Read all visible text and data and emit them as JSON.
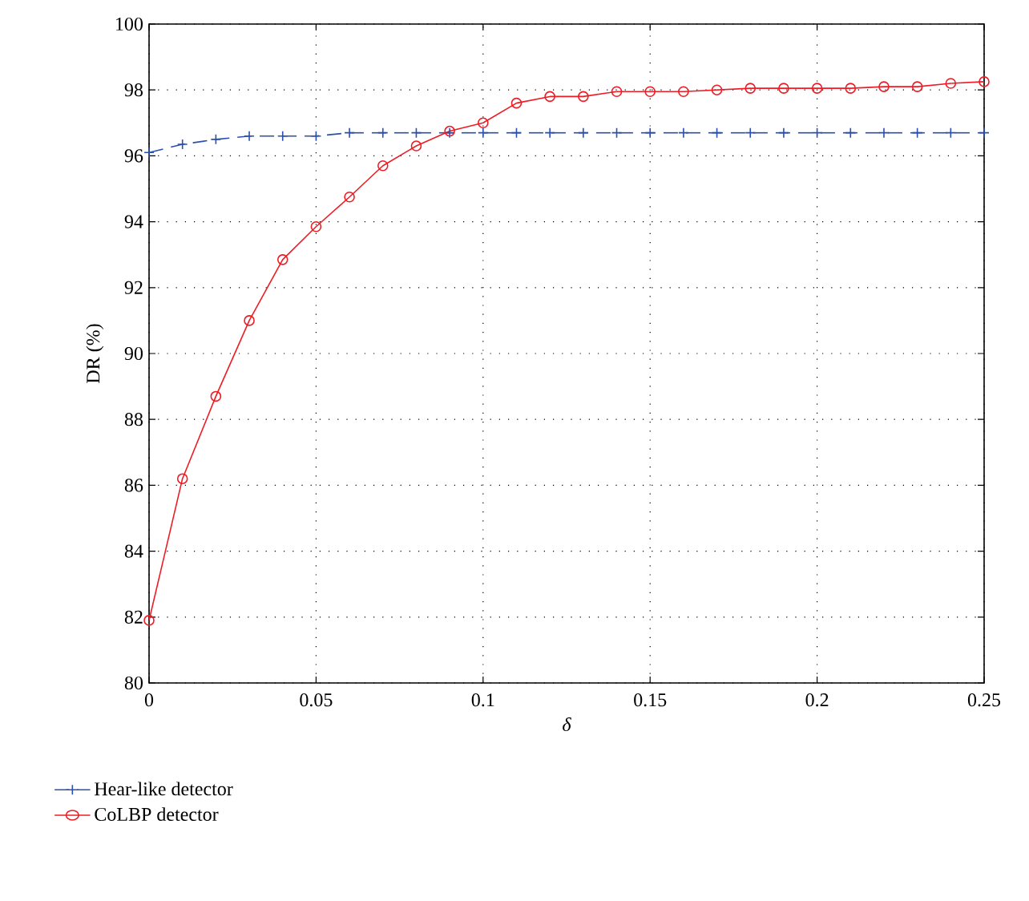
{
  "chart_data": {
    "type": "line",
    "xlabel": "δ",
    "ylabel": "DR (%)",
    "x": [
      0,
      0.01,
      0.02,
      0.03,
      0.04,
      0.05,
      0.06,
      0.07,
      0.08,
      0.09,
      0.1,
      0.11,
      0.12,
      0.13,
      0.14,
      0.15,
      0.16,
      0.17,
      0.18,
      0.19,
      0.2,
      0.21,
      0.22,
      0.23,
      0.24,
      0.25
    ],
    "series": [
      {
        "name": "Hear-like detector",
        "color": "#2a4fb0",
        "marker": "cross",
        "line_style": "dashed",
        "values": [
          96.1,
          96.35,
          96.5,
          96.6,
          96.6,
          96.6,
          96.7,
          96.7,
          96.7,
          96.7,
          96.7,
          96.7,
          96.7,
          96.7,
          96.7,
          96.7,
          96.7,
          96.7,
          96.7,
          96.7,
          96.7,
          96.7,
          96.7,
          96.7,
          96.7,
          96.7
        ]
      },
      {
        "name": "CoLBP detector",
        "color": "#ee1c24",
        "marker": "circle",
        "line_style": "solid",
        "values": [
          81.9,
          86.2,
          88.7,
          91.0,
          92.85,
          93.85,
          94.75,
          95.7,
          96.3,
          96.75,
          97.0,
          97.6,
          97.8,
          97.8,
          97.95,
          97.95,
          97.95,
          98.0,
          98.05,
          98.05,
          98.05,
          98.05,
          98.1,
          98.1,
          98.2,
          98.25
        ]
      }
    ],
    "xlim": [
      0,
      0.25
    ],
    "xticks": [
      0,
      0.05,
      0.1,
      0.15,
      0.2,
      0.25
    ],
    "ylim": [
      80,
      100
    ],
    "yticks": [
      80,
      82,
      84,
      86,
      88,
      90,
      92,
      94,
      96,
      98,
      100
    ],
    "grid": true,
    "legend": "bottom left"
  }
}
